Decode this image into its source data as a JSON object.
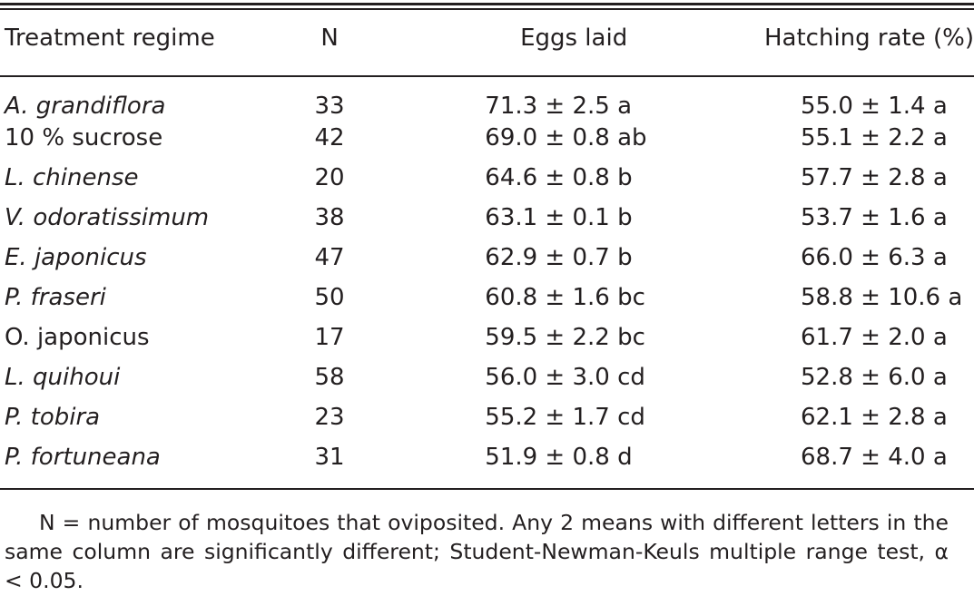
{
  "table": {
    "headers": {
      "regime": "Treatment regime",
      "n": "N",
      "eggs": "Eggs laid",
      "hatch": "Hatching rate (%)"
    },
    "rows": [
      {
        "regime": "A. grandiflora",
        "n": "33",
        "eggs": "71.3 ± 2.5 a",
        "hatch": "55.0 ± 1.4 a"
      },
      {
        "regime": "10 % sucrose",
        "n": "42",
        "eggs": "69.0 ± 0.8 ab",
        "hatch": "55.1 ± 2.2 a"
      },
      {
        "regime": "L. chinense",
        "n": "20",
        "eggs": "64.6 ± 0.8 b",
        "hatch": "57.7 ± 2.8 a"
      },
      {
        "regime": "V. odoratissimum",
        "n": "38",
        "eggs": "63.1 ± 0.1 b",
        "hatch": "53.7 ± 1.6 a"
      },
      {
        "regime": "E. japonicus",
        "n": "47",
        "eggs": "62.9 ± 0.7 b",
        "hatch": "66.0 ± 6.3 a"
      },
      {
        "regime": "P. fraseri",
        "n": "50",
        "eggs": "60.8 ± 1.6 bc",
        "hatch": "58.8 ± 10.6 a"
      },
      {
        "regime": "O. japonicus",
        "n": "17",
        "eggs": "59.5 ± 2.2 bc",
        "hatch": "61.7 ± 2.0 a"
      },
      {
        "regime": "L. quihoui",
        "n": "58",
        "eggs": "56.0 ± 3.0 cd",
        "hatch": "52.8 ± 6.0 a"
      },
      {
        "regime": "P. tobira",
        "n": "23",
        "eggs": "55.2 ± 1.7 cd",
        "hatch": "62.1 ± 2.8 a"
      },
      {
        "regime": "P. fortuneana",
        "n": "31",
        "eggs": "51.9 ± 0.8 d",
        "hatch": "68.7 ± 4.0 a"
      }
    ]
  },
  "footnote": "N = number of mosquitoes that oviposited. Any 2 means with different letters in the same column are significantly different; Student-Newman-Keuls multiple range test, α < 0.05."
}
